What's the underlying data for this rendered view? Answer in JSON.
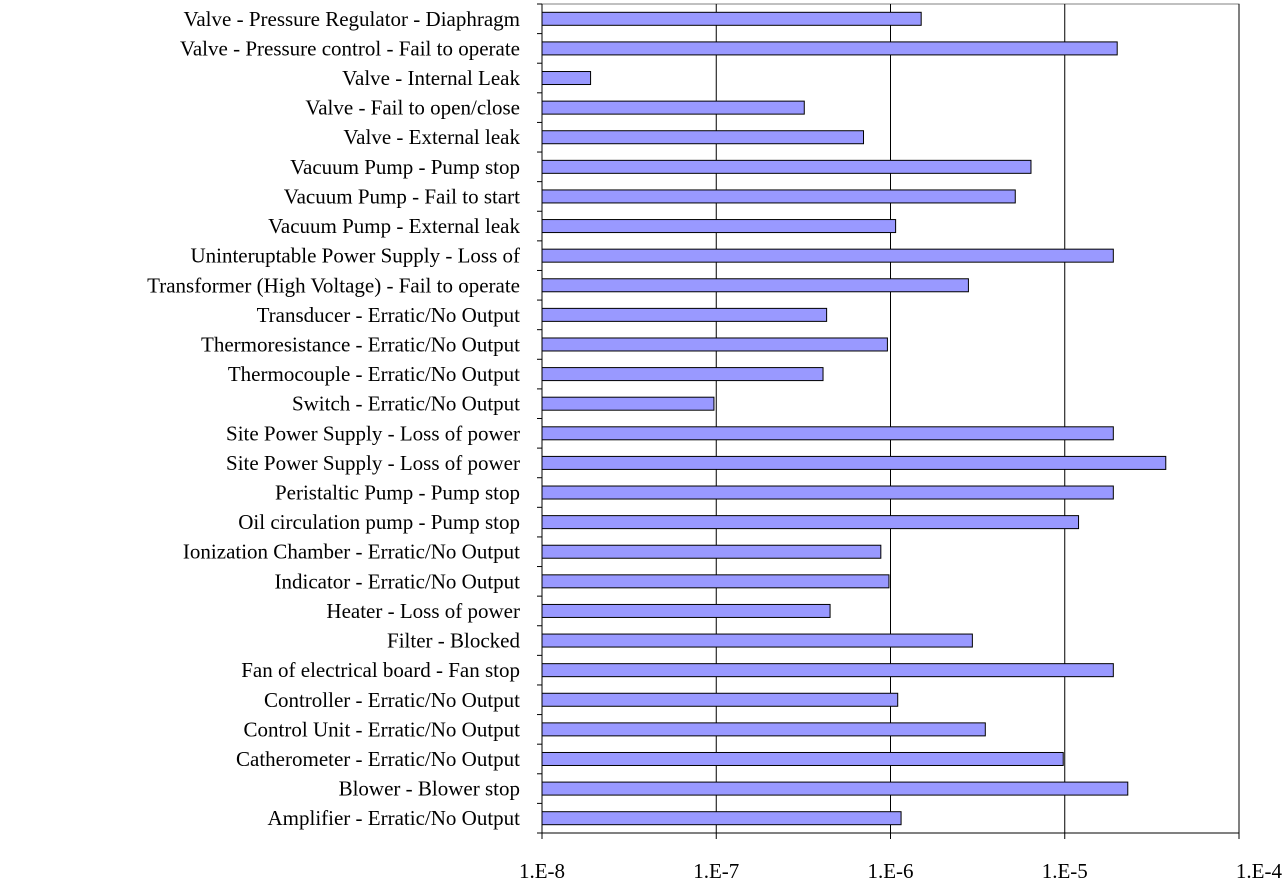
{
  "chart_data": {
    "type": "bar",
    "orientation": "horizontal",
    "x_scale": "log",
    "xlim": [
      1e-08,
      0.0001
    ],
    "x_ticks": [
      "1.E-8",
      "1.E-7",
      "1.E-6",
      "1.E-5",
      "1.E-4"
    ],
    "x_tick_values": [
      1e-08,
      1e-07,
      1e-06,
      1e-05,
      0.0001
    ],
    "grid": "vertical",
    "legend": "none",
    "bar_color": "#9999ff",
    "bar_edge_color": "#000000",
    "gridline_color": "#000000",
    "plot_border_color": "#808080",
    "categories": [
      "Valve - Pressure Regulator - Diaphragm",
      "Valve - Pressure control - Fail to operate",
      "Valve - Internal Leak",
      "Valve - Fail to open/close",
      "Valve - External leak",
      "Vacuum Pump - Pump stop",
      "Vacuum Pump - Fail to start",
      "Vacuum Pump - External leak",
      "Uninteruptable Power Supply - Loss of",
      "Transformer (High Voltage) - Fail to operate",
      "Transducer - Erratic/No Output",
      "Thermoresistance - Erratic/No Output",
      "Thermocouple - Erratic/No Output",
      "Switch - Erratic/No Output",
      "Site Power Supply - Loss of power",
      "Site Power Supply - Loss of power",
      "Peristaltic Pump - Pump stop",
      "Oil circulation pump - Pump stop",
      "Ionization Chamber - Erratic/No Output",
      "Indicator - Erratic/No Output",
      "Heater - Loss of power",
      "Filter - Blocked",
      "Fan of electrical board - Fan stop",
      "Controller - Erratic/No Output",
      "Control Unit - Erratic/No Output",
      "Catherometer - Erratic/No Output",
      "Blower - Blower stop",
      "Amplifier - Erratic/No Output"
    ],
    "values": [
      1.5e-06,
      2e-05,
      1.9e-08,
      3.2e-07,
      7e-07,
      6.4e-06,
      5.2e-06,
      1.07e-06,
      1.9e-05,
      2.8e-06,
      4.3e-07,
      9.6e-07,
      4.1e-07,
      9.7e-08,
      1.9e-05,
      3.8e-05,
      1.9e-05,
      1.2e-05,
      8.8e-07,
      9.8e-07,
      4.5e-07,
      2.95e-06,
      1.9e-05,
      1.1e-06,
      3.5e-06,
      9.8e-06,
      2.3e-05,
      1.15e-06
    ]
  }
}
